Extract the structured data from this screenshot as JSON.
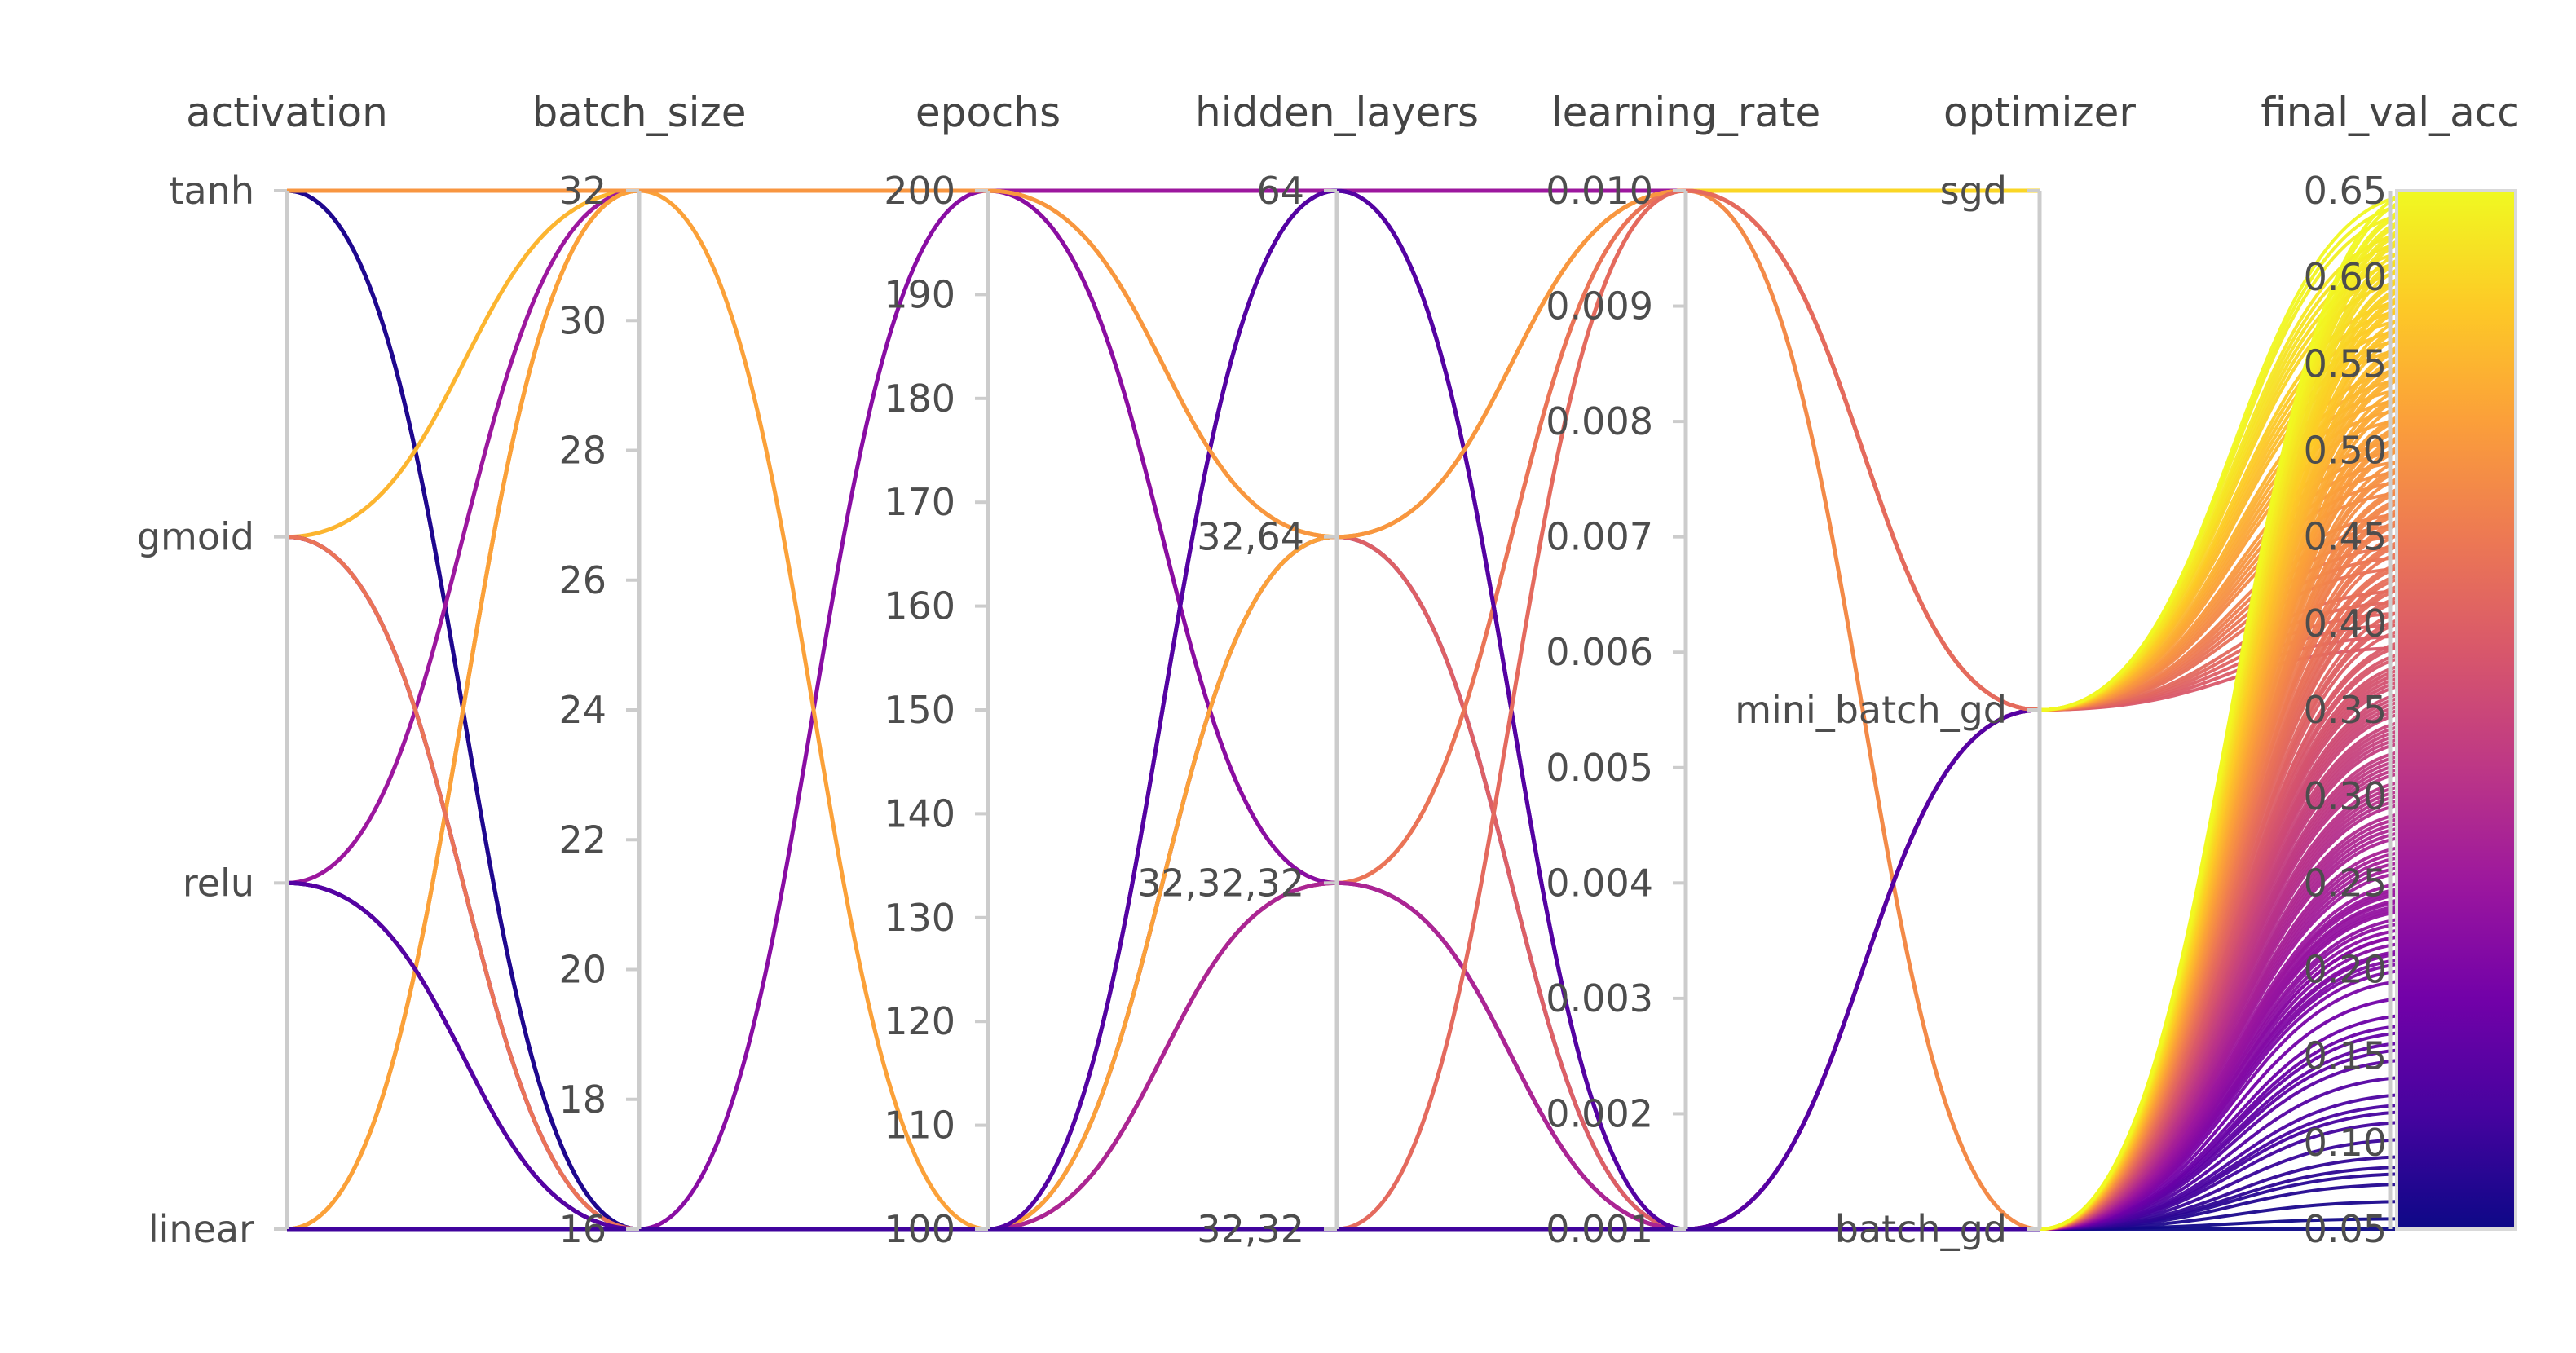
{
  "chart_data": {
    "type": "parallel_coordinates",
    "axes": [
      {
        "key": "activation",
        "label": "activation",
        "kind": "categorical",
        "ticks": [
          "tanh",
          "gmoid",
          "relu",
          "linear"
        ],
        "positions": [
          3,
          2,
          1,
          0
        ],
        "range": [
          0,
          3
        ]
      },
      {
        "key": "batch_size",
        "label": "batch_size",
        "kind": "numeric",
        "range": [
          16,
          32
        ],
        "ticks": [
          16,
          18,
          20,
          22,
          24,
          26,
          28,
          30,
          32
        ]
      },
      {
        "key": "epochs",
        "label": "epochs",
        "kind": "numeric",
        "range": [
          100,
          200
        ],
        "ticks": [
          100,
          110,
          120,
          130,
          140,
          150,
          160,
          170,
          180,
          190,
          200
        ]
      },
      {
        "key": "hidden_layers",
        "label": "hidden_layers",
        "kind": "categorical",
        "ticks": [
          "64",
          "32,64",
          "32,32,32",
          "32,32"
        ],
        "positions": [
          3,
          2,
          1,
          0
        ],
        "range": [
          0,
          3
        ]
      },
      {
        "key": "learning_rate",
        "label": "learning_rate",
        "kind": "numeric",
        "range": [
          0.001,
          0.01
        ],
        "ticks": [
          "0.001",
          "0.002",
          "0.003",
          "0.004",
          "0.005",
          "0.006",
          "0.007",
          "0.008",
          "0.009",
          "0.010"
        ]
      },
      {
        "key": "optimizer",
        "label": "optimizer",
        "kind": "categorical",
        "ticks": [
          "sgd",
          "mini_batch_gd",
          "batch_gd"
        ],
        "positions": [
          2,
          1,
          0
        ],
        "range": [
          0,
          2
        ]
      },
      {
        "key": "final_val_acc",
        "label": "final_val_acc",
        "kind": "numeric",
        "range": [
          0.05,
          0.65
        ],
        "ticks": [
          "0.05",
          "0.10",
          "0.15",
          "0.20",
          "0.25",
          "0.30",
          "0.35",
          "0.40",
          "0.45",
          "0.50",
          "0.55",
          "0.60",
          "0.65"
        ]
      }
    ],
    "lines": [
      {
        "v": [
          3,
          32,
          200,
          3,
          0.01,
          2
        ],
        "acc": 0.62
      },
      {
        "v": [
          3,
          32,
          200,
          3,
          0.01,
          0
        ],
        "acc": 0.48
      },
      {
        "v": [
          3,
          16,
          100,
          0,
          0.001,
          0
        ],
        "acc": 0.1
      },
      {
        "v": [
          3,
          16,
          100,
          0,
          0.001,
          0
        ],
        "acc": 0.07
      },
      {
        "v": [
          2,
          32,
          200,
          2,
          0.01,
          1
        ],
        "acc": 0.55
      },
      {
        "v": [
          2,
          16,
          100,
          1,
          0.001,
          1
        ],
        "acc": 0.2
      },
      {
        "v": [
          2,
          16,
          100,
          0,
          0.001,
          0
        ],
        "acc": 0.18
      },
      {
        "v": [
          1,
          32,
          200,
          3,
          0.01,
          1
        ],
        "acc": 0.25
      },
      {
        "v": [
          1,
          16,
          100,
          2,
          0.001,
          1
        ],
        "acc": 0.12
      },
      {
        "v": [
          1,
          16,
          100,
          3,
          0.001,
          0
        ],
        "acc": 0.08
      },
      {
        "v": [
          0,
          32,
          200,
          2,
          0.01,
          2
        ],
        "acc": 0.6
      },
      {
        "v": [
          0,
          32,
          200,
          1,
          0.01,
          1
        ],
        "acc": 0.46
      },
      {
        "v": [
          0,
          16,
          100,
          0,
          0.001,
          0
        ],
        "acc": 0.16
      },
      {
        "v": [
          0,
          16,
          100,
          2,
          0.001,
          1
        ],
        "acc": 0.4
      },
      {
        "v": [
          0,
          16,
          200,
          1,
          0.001,
          1
        ],
        "acc": 0.22
      },
      {
        "v": [
          0,
          32,
          100,
          2,
          0.01,
          1
        ],
        "acc": 0.52
      },
      {
        "v": [
          2,
          16,
          100,
          1,
          0.01,
          1
        ],
        "acc": 0.44
      },
      {
        "v": [
          0,
          16,
          100,
          1,
          0.001,
          1
        ],
        "acc": 0.28
      },
      {
        "v": [
          1,
          16,
          100,
          3,
          0.001,
          1
        ],
        "acc": 0.14
      },
      {
        "v": [
          3,
          32,
          200,
          2,
          0.01,
          1
        ],
        "acc": 0.5
      },
      {
        "v": [
          0,
          16,
          100,
          0,
          0.01,
          1
        ],
        "acc": 0.42
      },
      {
        "v": [
          0,
          16,
          100,
          0,
          0.001,
          0
        ],
        "acc": 0.11
      }
    ],
    "fan": {
      "count": 200,
      "min": 0.05,
      "max": 0.65,
      "distribution": "dense 0.20-0.65, sparse 0.05-0.20"
    },
    "colorbar": {
      "range": [
        0.05,
        0.65
      ],
      "colors": [
        "#0d0887",
        "#46039f",
        "#7201a8",
        "#9c179e",
        "#bd3786",
        "#d8576b",
        "#ed7953",
        "#fb9f3a",
        "#fdca26",
        "#f0f921"
      ]
    }
  }
}
